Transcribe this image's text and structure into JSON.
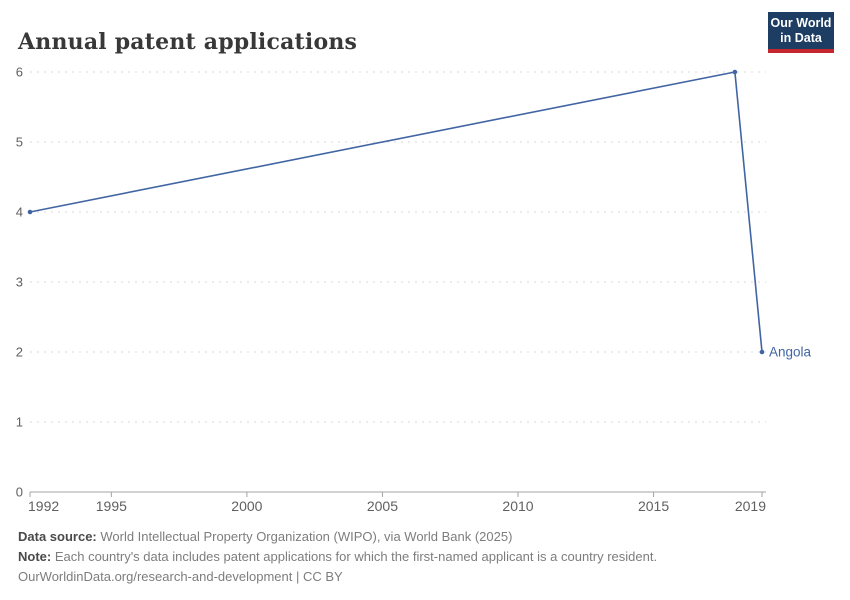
{
  "header": {
    "title": "Annual patent applications",
    "logo": {
      "line1": "Our World",
      "line2": "in Data"
    }
  },
  "chart_data": {
    "type": "line",
    "title": "Annual patent applications",
    "entity": "Angola",
    "series": [
      {
        "name": "Angola",
        "color": "#4165a3",
        "points": [
          {
            "year": 1992,
            "value": 4
          },
          {
            "year": 2018,
            "value": 6
          },
          {
            "year": 2019,
            "value": 2
          }
        ]
      }
    ],
    "x_ticks": [
      1992,
      1995,
      2000,
      2005,
      2010,
      2015,
      2019
    ],
    "y_ticks": [
      0,
      1,
      2,
      3,
      4,
      5,
      6
    ],
    "xlim": [
      1992,
      2019
    ],
    "ylim": [
      0,
      6
    ],
    "grid": "horizontal-dashed",
    "legend_position": "end-of-line-label",
    "xlabel": "",
    "ylabel": ""
  },
  "footer": {
    "datasource_label": "Data source:",
    "datasource_text": " World Intellectual Property Organization (WIPO), via World Bank (2025)",
    "note_label": "Note:",
    "note_text": " Each country's data includes patent applications for which the first-named applicant is a country resident.",
    "license": "OurWorldinData.org/research-and-development | CC BY"
  },
  "colors": {
    "line": "#4165a3",
    "logo_bg": "#1d3d63",
    "logo_accent": "#c4272e",
    "grid": "#dadada",
    "axis": "#a3a3a3",
    "tick_label": "#606060",
    "title": "#383838",
    "footer_text": "#7d7d7d",
    "footer_label": "#4a4a4a"
  }
}
